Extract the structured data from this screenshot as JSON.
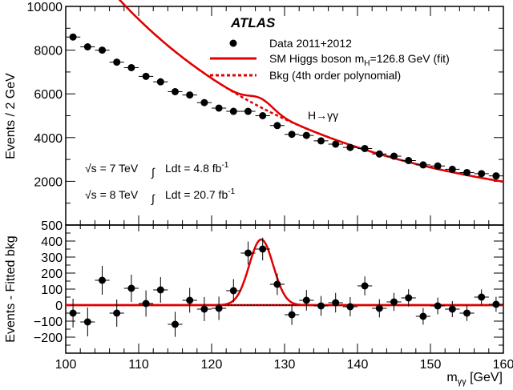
{
  "chart_data": [
    {
      "type": "scatter",
      "panel": "main",
      "title": "ATLAS",
      "ylabel": "Events / 2 GeV",
      "xlim": [
        100,
        160
      ],
      "ylim": [
        0,
        10000
      ],
      "yticks": [
        2000,
        4000,
        6000,
        8000,
        10000
      ],
      "ytick_labels": [
        "2000",
        "4000",
        "6000",
        "8000",
        "10000"
      ],
      "legend_position": "top-right",
      "legend": [
        {
          "label": "Data 2011+2012",
          "style": "marker"
        },
        {
          "label_main": "SM Higgs boson m",
          "label_sub": "H",
          "label_rest": "=126.8 GeV (fit)",
          "style": "solid-red"
        },
        {
          "label": "Bkg (4th order polynomial)",
          "style": "dashed-red"
        }
      ],
      "annotations": {
        "channel": "H→γγ",
        "lumi_7_sqrt": "√s = 7 TeV",
        "lumi_7_int": "Ldt = 4.8 fb",
        "lumi_7_exp": "-1",
        "lumi_8_sqrt": "√s = 8 TeV",
        "lumi_8_int": "Ldt = 20.7 fb",
        "lumi_8_exp": "-1"
      },
      "series": [
        {
          "name": "Data 2011+2012",
          "x": [
            101,
            103,
            105,
            107,
            109,
            111,
            113,
            115,
            117,
            119,
            121,
            123,
            125,
            127,
            129,
            131,
            133,
            135,
            137,
            139,
            141,
            143,
            145,
            147,
            149,
            151,
            153,
            155,
            157,
            159
          ],
          "y": [
            8600,
            8150,
            8000,
            7450,
            7200,
            6800,
            6550,
            6100,
            5950,
            5600,
            5350,
            5200,
            5200,
            5000,
            4550,
            4150,
            4100,
            3850,
            3700,
            3550,
            3500,
            3250,
            3150,
            2950,
            2750,
            2700,
            2550,
            2400,
            2350,
            2250
          ],
          "yerr": [
            90,
            90,
            90,
            85,
            85,
            82,
            80,
            78,
            77,
            75,
            73,
            72,
            72,
            71,
            67,
            64,
            64,
            62,
            61,
            60,
            59,
            57,
            56,
            54,
            52,
            52,
            50,
            49,
            48,
            47
          ]
        },
        {
          "name": "SM Higgs boson",
          "model": {
            "a": 5340,
            "b": -0.0322,
            "c": 6.6e-05,
            "peak_x": 126.8,
            "peak_height": 410,
            "width": 1.65
          }
        },
        {
          "name": "Bkg (4th order polynomial)"
        }
      ]
    },
    {
      "type": "scatter",
      "panel": "residual",
      "xlabel_main": "m",
      "xlabel_sub": "γγ",
      "xlabel_rest": " [GeV]",
      "ylabel": "Events - Fitted bkg",
      "xlim": [
        100,
        160
      ],
      "ylim": [
        -300,
        500
      ],
      "xticks": [
        100,
        110,
        120,
        130,
        140,
        150,
        160
      ],
      "xtick_labels": [
        "100",
        "110",
        "120",
        "130",
        "140",
        "150",
        "160"
      ],
      "yticks": [
        -200,
        -100,
        0,
        100,
        200,
        300,
        400,
        500
      ],
      "ytick_labels": [
        "−200",
        "−100",
        "0",
        "100",
        "200",
        "300",
        "400",
        "500"
      ],
      "series": [
        {
          "name": "Data 2011+2012",
          "x": [
            101,
            103,
            105,
            107,
            109,
            111,
            113,
            115,
            117,
            119,
            121,
            123,
            125,
            127,
            129,
            131,
            133,
            135,
            137,
            139,
            141,
            143,
            145,
            147,
            149,
            151,
            153,
            155,
            157,
            159
          ],
          "y": [
            -50,
            -105,
            155,
            -50,
            105,
            10,
            95,
            -120,
            30,
            -25,
            -20,
            90,
            325,
            350,
            130,
            -60,
            30,
            -5,
            15,
            -10,
            120,
            -20,
            20,
            45,
            -70,
            -5,
            -25,
            -50,
            50,
            5
          ],
          "yerr": [
            90,
            90,
            90,
            85,
            85,
            82,
            80,
            78,
            77,
            75,
            73,
            72,
            72,
            71,
            67,
            64,
            64,
            62,
            61,
            60,
            59,
            57,
            56,
            54,
            52,
            52,
            50,
            49,
            48,
            47
          ]
        }
      ]
    }
  ]
}
